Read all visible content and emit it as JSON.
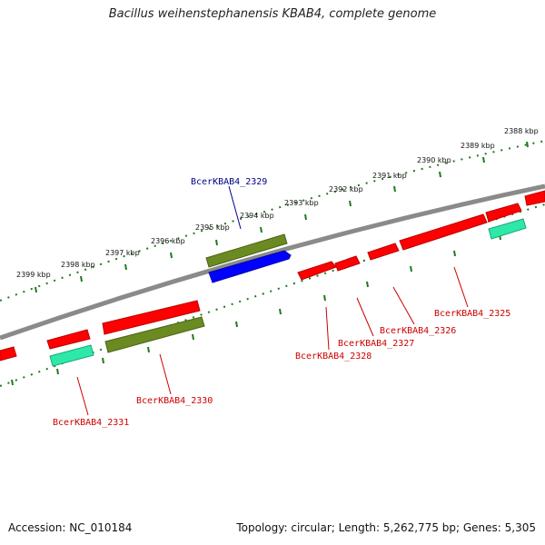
{
  "title": "Bacillus weihenstephanensis KBAB4, complete genome",
  "footer": {
    "accession": "Accession: NC_010184",
    "summary": "Topology: circular; Length: 5,262,775 bp; Genes: 5,305"
  },
  "colors": {
    "backbone": "#8a8a8a",
    "tick": "#1e7a1e",
    "cds": "#ff0000",
    "trna": "#2ee8a8",
    "olive": "#6b8a22",
    "blue": "#0000ff",
    "label_red": "#cc0000",
    "label_blue": "#00008b"
  },
  "scale": {
    "labels": [
      "2388 kbp",
      "2389 kbp",
      "2390 kbp",
      "2391 kbp",
      "2392 kbp",
      "2393 kbp",
      "2394 kbp",
      "2395 kbp",
      "2396 kbp",
      "2397 kbp",
      "2398 kbp",
      "2399 kbp"
    ]
  },
  "gene_labels": {
    "g2325": "BcerKBAB4_2325",
    "g2326": "BcerKBAB4_2326",
    "g2327": "BcerKBAB4_2327",
    "g2328": "BcerKBAB4_2328",
    "g2329": "BcerKBAB4_2329",
    "g2330": "BcerKBAB4_2330",
    "g2331": "BcerKBAB4_2331"
  }
}
